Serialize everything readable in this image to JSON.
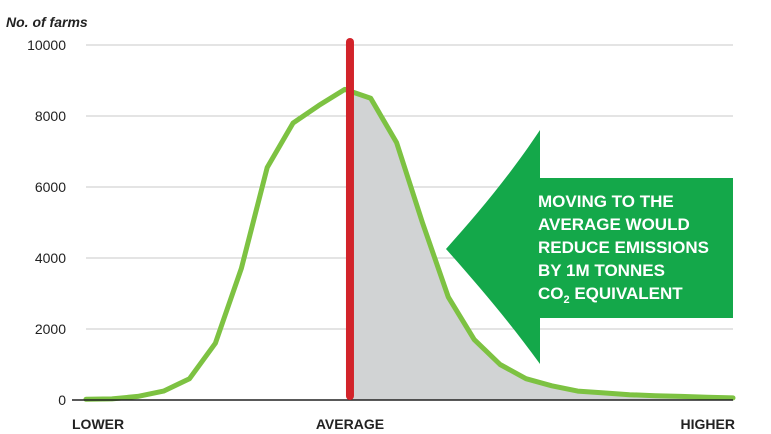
{
  "chart_data": {
    "type": "area",
    "ylabel": "No. of farms",
    "ylim": [
      0,
      10000
    ],
    "y_ticks": [
      "0",
      "2000",
      "4000",
      "6000",
      "8000",
      "10000"
    ],
    "x_labels": [
      "LOWER",
      "AVERAGE",
      "HIGHER"
    ],
    "grid": true,
    "x": [
      0,
      1,
      2,
      3,
      4,
      5,
      6,
      7,
      8,
      9,
      10,
      11,
      12,
      13,
      14,
      15,
      16,
      17,
      18,
      19,
      20,
      21,
      22,
      23,
      24,
      25
    ],
    "series": [
      {
        "values": [
          20,
          30,
          100,
          250,
          600,
          1600,
          3700,
          6550,
          7800,
          8300,
          8750,
          8500,
          7250,
          5000,
          2900,
          1700,
          1000,
          600,
          400,
          250,
          200,
          150,
          120,
          100,
          80,
          60
        ]
      }
    ],
    "average_x": 10.2,
    "callout": {
      "lines": [
        "MOVING TO THE",
        "AVERAGE WOULD",
        "REDUCE EMISSIONS",
        "BY 1M TONNES"
      ],
      "last_line_prefix": "CO",
      "last_line_subscript": "2",
      "last_line_suffix": " EQUIVALENT"
    },
    "colors": {
      "line": "#7dc242",
      "fill": "#d1d3d4",
      "average": "#d2232a",
      "callout": "#14a84a",
      "grid": "#c8c8c8",
      "axis": "#222222"
    }
  }
}
